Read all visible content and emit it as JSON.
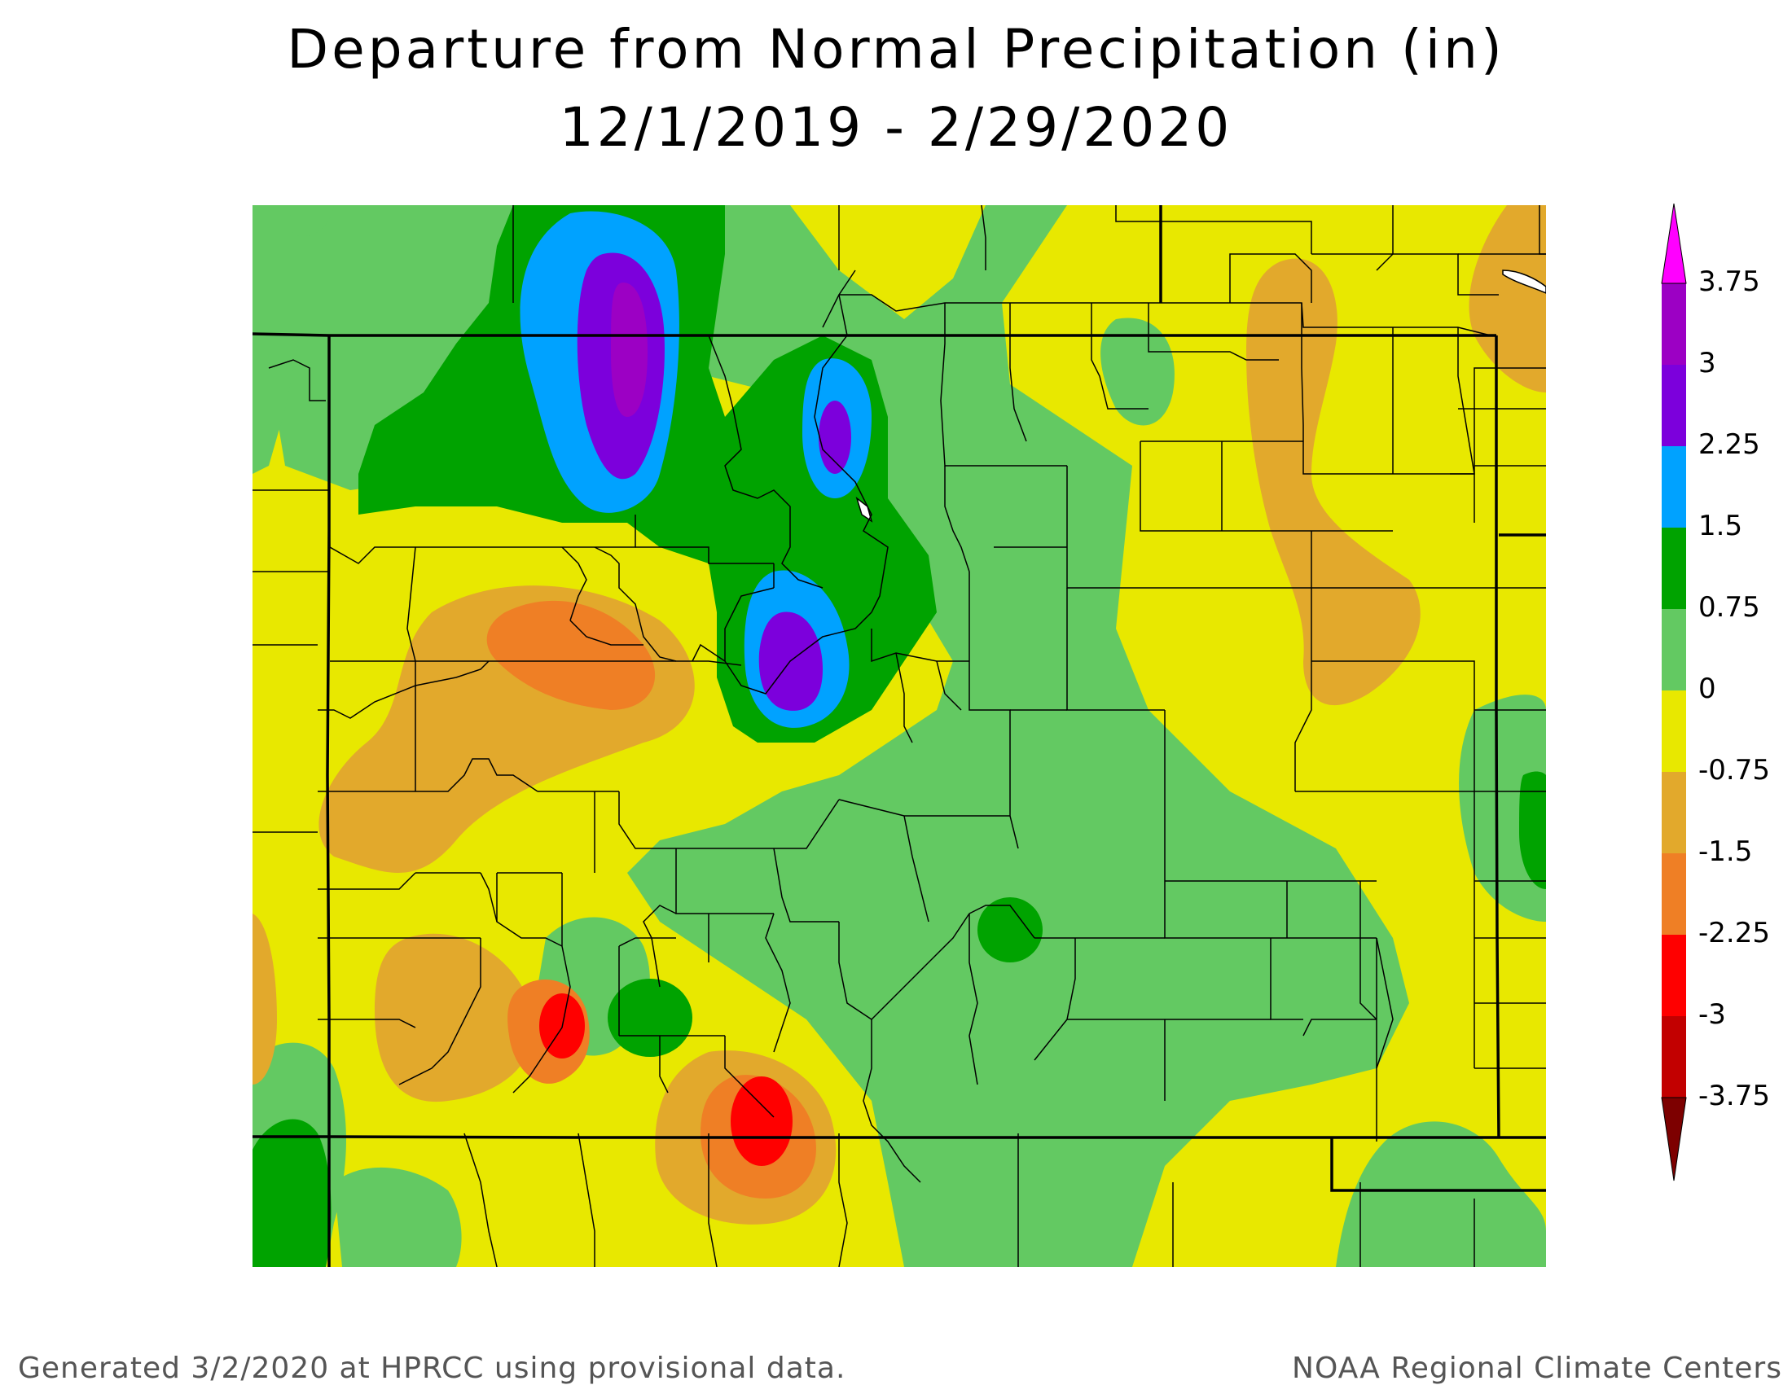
{
  "title": "Departure from Normal Precipitation (in)",
  "subtitle": "12/1/2019 - 2/29/2020",
  "footer_left": "Generated 3/2/2020 at HPRCC using provisional data.",
  "footer_right": "NOAA Regional Climate Centers",
  "legend": {
    "labels": [
      "3.75",
      "3",
      "2.25",
      "1.5",
      "0.75",
      "0",
      "-0.75",
      "-1.5",
      "-2.25",
      "-3",
      "-3.75"
    ],
    "colors": [
      "#9c00c4",
      "#7c00dc",
      "#00a2ff",
      "#00a300",
      "#63c962",
      "#e8e800",
      "#e2a92c",
      "#ef7f25",
      "#ff0000",
      "#c20000"
    ],
    "top_arrow_color": "#ff00ff",
    "bottom_arrow_color": "#7d0000"
  },
  "colors": {
    "purple": "#9c00c4",
    "violet": "#7c00dc",
    "blue": "#00a2ff",
    "dark_green": "#00a300",
    "light_green": "#63c962",
    "yellow": "#e8e800",
    "tan": "#e2a92c",
    "orange": "#ef7f25",
    "red": "#ff0000"
  }
}
